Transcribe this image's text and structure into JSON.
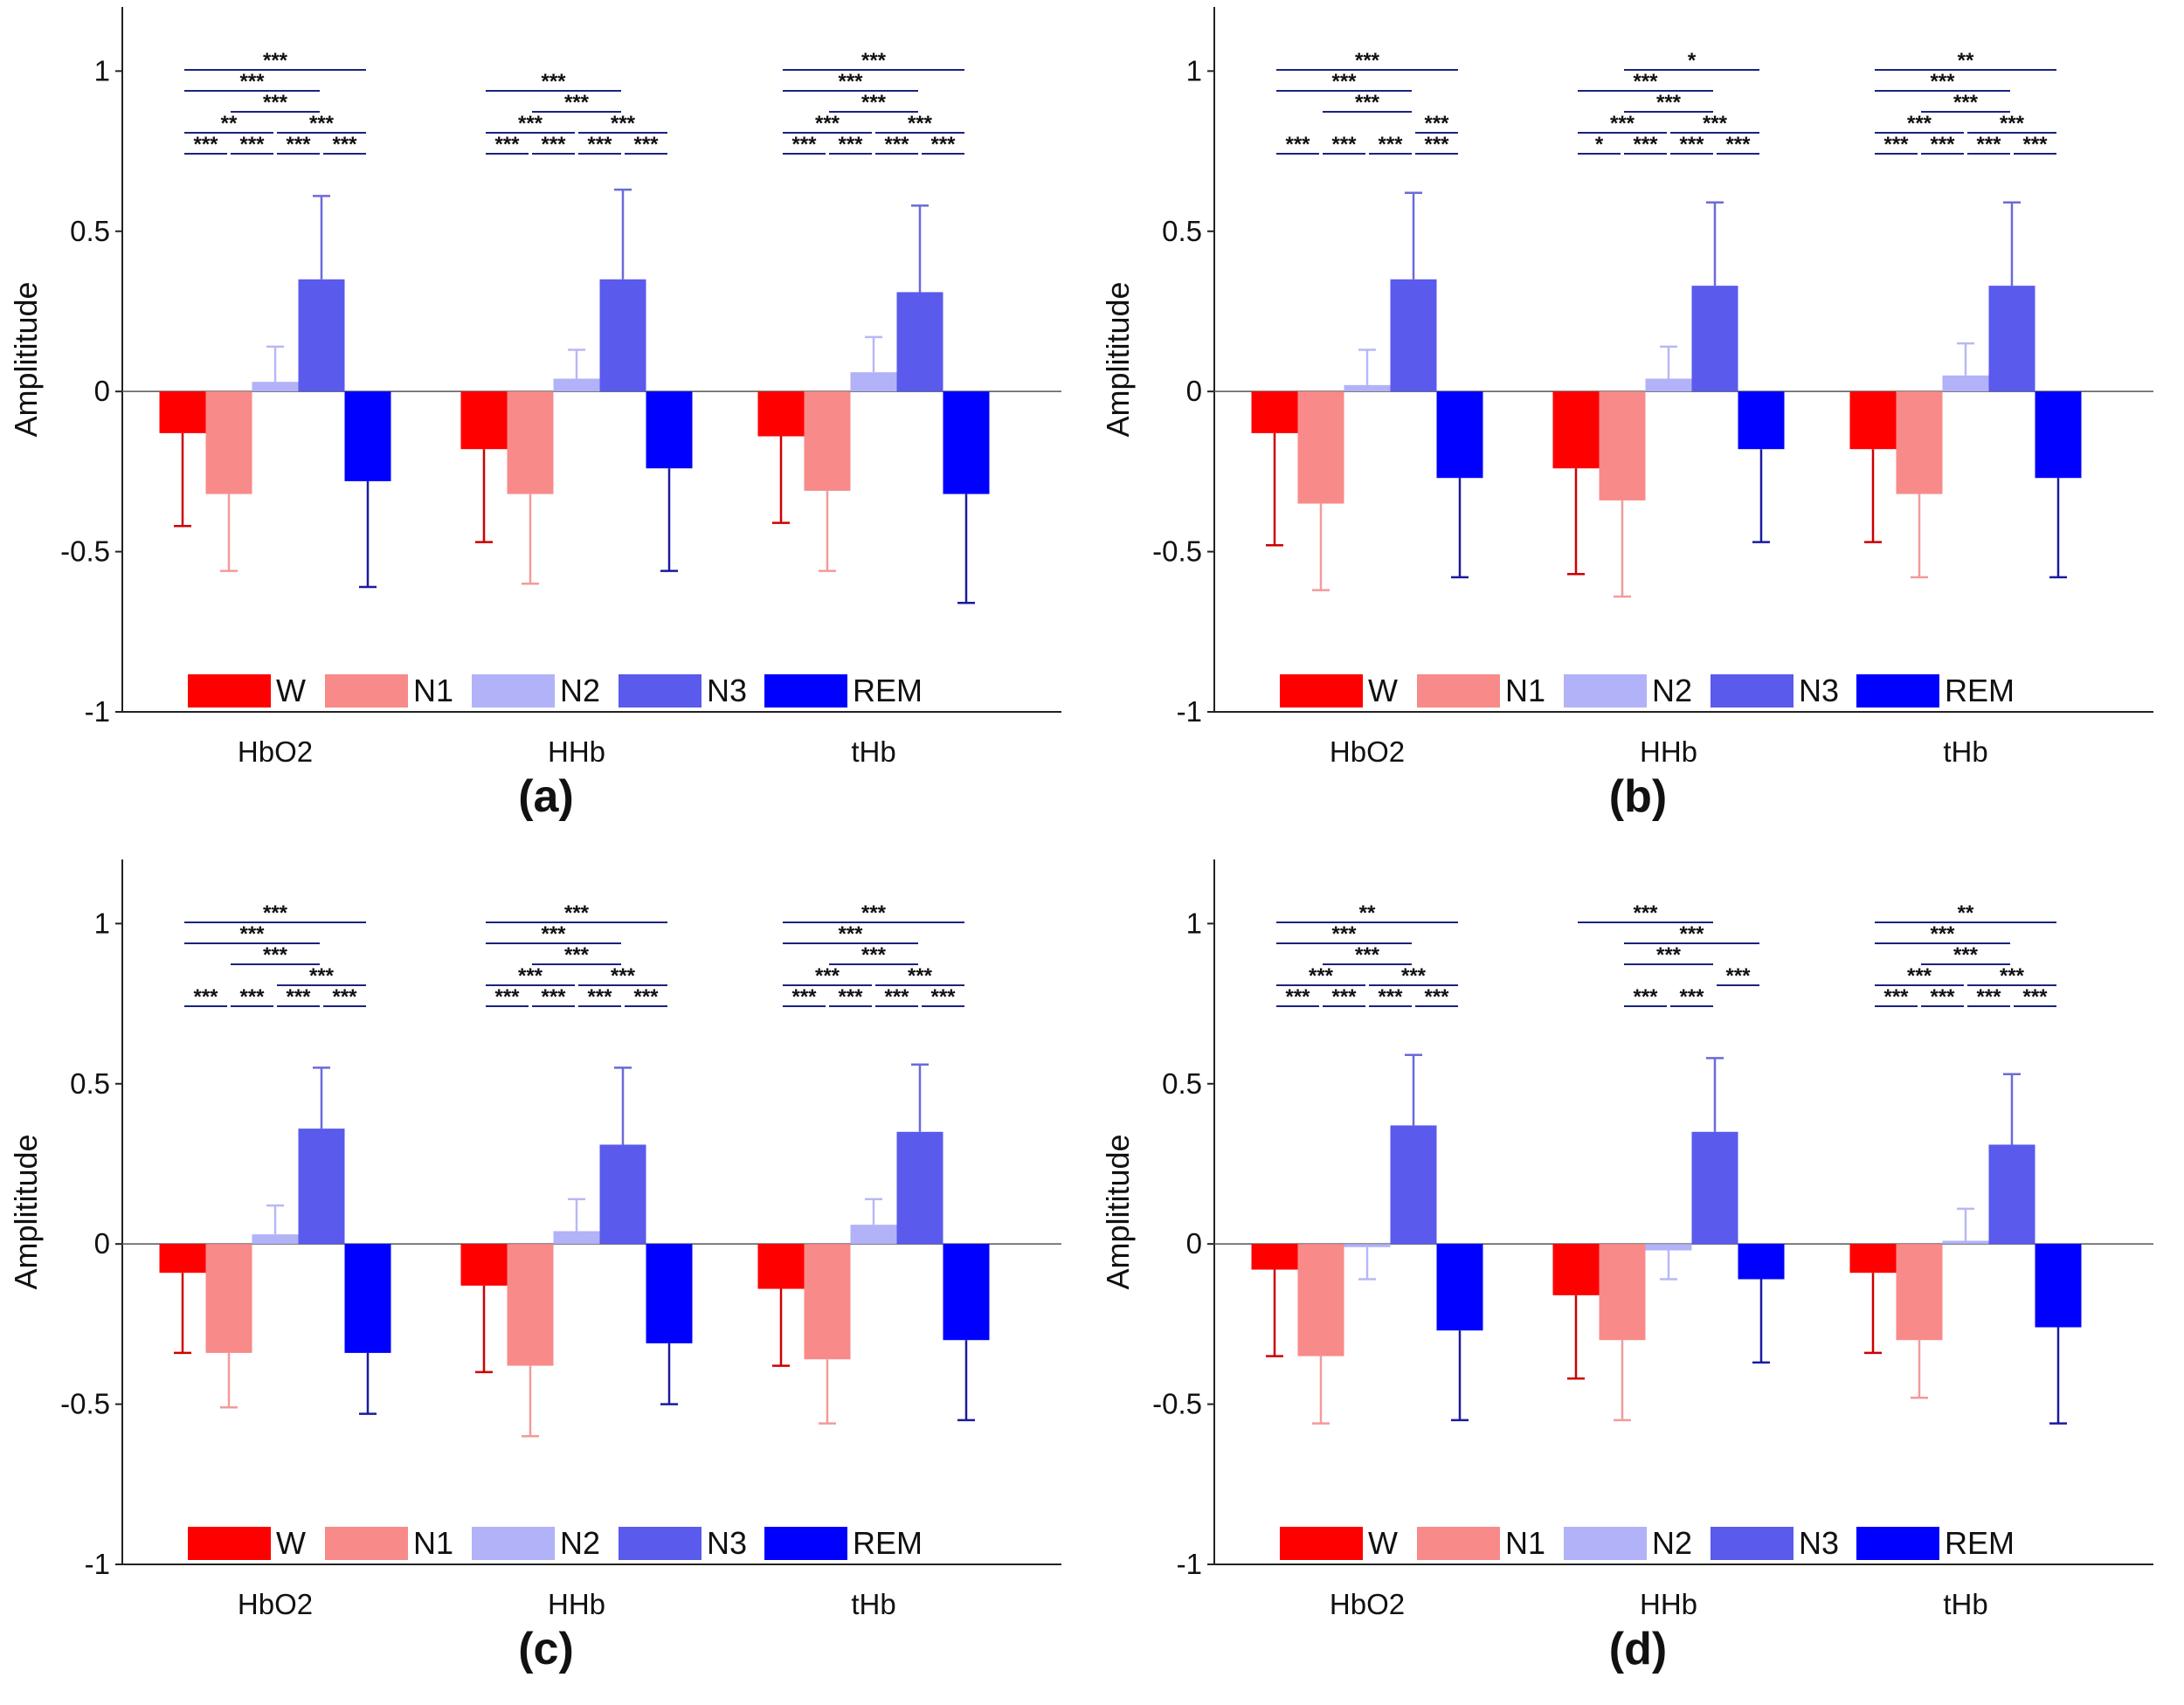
{
  "chart_data": [
    {
      "type": "bar",
      "panel_label": "(a)",
      "ylabel": "Amplititude",
      "ylim": [
        -1,
        1.2
      ],
      "yticks": [
        -1,
        -0.5,
        0,
        0.5,
        1
      ],
      "categories": [
        "HbO2",
        "HHb",
        "tHb"
      ],
      "legend_position": "bottom",
      "series": [
        {
          "name": "W",
          "color": "#ff0000",
          "errcolor": "#cc0000",
          "values": [
            -0.13,
            -0.18,
            -0.14
          ],
          "errors": [
            0.29,
            0.29,
            0.27
          ]
        },
        {
          "name": "N1",
          "color": "#f88a8a",
          "errcolor": "#f39a9a",
          "values": [
            -0.32,
            -0.32,
            -0.31
          ],
          "errors": [
            0.24,
            0.28,
            0.25
          ]
        },
        {
          "name": "N2",
          "color": "#b2b2f8",
          "errcolor": "#b8b8f4",
          "values": [
            0.03,
            0.04,
            0.06
          ],
          "errors": [
            0.11,
            0.09,
            0.11
          ]
        },
        {
          "name": "N3",
          "color": "#5a5aec",
          "errcolor": "#6a6ad8",
          "values": [
            0.35,
            0.35,
            0.31
          ],
          "errors": [
            0.26,
            0.28,
            0.27
          ]
        },
        {
          "name": "REM",
          "color": "#0000ff",
          "errcolor": "#1a1aa0",
          "values": [
            -0.28,
            -0.24,
            -0.32
          ],
          "errors": [
            0.33,
            0.32,
            0.34
          ]
        }
      ],
      "significance": [
        [
          {
            "s": 0,
            "e": 4,
            "label": "***",
            "row": 4
          },
          {
            "s": 0,
            "e": 3,
            "label": "***",
            "row": 3
          },
          {
            "s": 1,
            "e": 3,
            "label": "***",
            "row": 2
          },
          {
            "s": 0,
            "e": 2,
            "label": "**",
            "row": 1
          },
          {
            "s": 2,
            "e": 4,
            "label": "***",
            "row": 1
          },
          {
            "s": 0,
            "e": 1,
            "label": "***",
            "row": 0
          },
          {
            "s": 1,
            "e": 2,
            "label": "***",
            "row": 0
          },
          {
            "s": 2,
            "e": 3,
            "label": "***",
            "row": 0
          },
          {
            "s": 3,
            "e": 4,
            "label": "***",
            "row": 0
          }
        ],
        [
          {
            "s": 0,
            "e": 3,
            "label": "***",
            "row": 3
          },
          {
            "s": 1,
            "e": 3,
            "label": "***",
            "row": 2
          },
          {
            "s": 0,
            "e": 2,
            "label": "***",
            "row": 1
          },
          {
            "s": 2,
            "e": 4,
            "label": "***",
            "row": 1
          },
          {
            "s": 0,
            "e": 1,
            "label": "***",
            "row": 0
          },
          {
            "s": 1,
            "e": 2,
            "label": "***",
            "row": 0
          },
          {
            "s": 2,
            "e": 3,
            "label": "***",
            "row": 0
          },
          {
            "s": 3,
            "e": 4,
            "label": "***",
            "row": 0
          }
        ],
        [
          {
            "s": 0,
            "e": 4,
            "label": "***",
            "row": 4
          },
          {
            "s": 0,
            "e": 3,
            "label": "***",
            "row": 3
          },
          {
            "s": 1,
            "e": 3,
            "label": "***",
            "row": 2
          },
          {
            "s": 0,
            "e": 2,
            "label": "***",
            "row": 1
          },
          {
            "s": 2,
            "e": 4,
            "label": "***",
            "row": 1
          },
          {
            "s": 0,
            "e": 1,
            "label": "***",
            "row": 0
          },
          {
            "s": 1,
            "e": 2,
            "label": "***",
            "row": 0
          },
          {
            "s": 2,
            "e": 3,
            "label": "***",
            "row": 0
          },
          {
            "s": 3,
            "e": 4,
            "label": "***",
            "row": 0
          }
        ]
      ]
    },
    {
      "type": "bar",
      "panel_label": "(b)",
      "ylabel": "Amplititude",
      "ylim": [
        -1,
        1.2
      ],
      "yticks": [
        -1,
        -0.5,
        0,
        0.5,
        1
      ],
      "categories": [
        "HbO2",
        "HHb",
        "tHb"
      ],
      "legend_position": "bottom",
      "series": [
        {
          "name": "W",
          "color": "#ff0000",
          "errcolor": "#cc0000",
          "values": [
            -0.13,
            -0.24,
            -0.18
          ],
          "errors": [
            0.35,
            0.33,
            0.29
          ]
        },
        {
          "name": "N1",
          "color": "#f88a8a",
          "errcolor": "#f39a9a",
          "values": [
            -0.35,
            -0.34,
            -0.32
          ],
          "errors": [
            0.27,
            0.3,
            0.26
          ]
        },
        {
          "name": "N2",
          "color": "#b2b2f8",
          "errcolor": "#b8b8f4",
          "values": [
            0.02,
            0.04,
            0.05
          ],
          "errors": [
            0.11,
            0.1,
            0.1
          ]
        },
        {
          "name": "N3",
          "color": "#5a5aec",
          "errcolor": "#6a6ad8",
          "values": [
            0.35,
            0.33,
            0.33
          ],
          "errors": [
            0.27,
            0.26,
            0.26
          ]
        },
        {
          "name": "REM",
          "color": "#0000ff",
          "errcolor": "#1a1aa0",
          "values": [
            -0.27,
            -0.18,
            -0.27
          ],
          "errors": [
            0.31,
            0.29,
            0.31
          ]
        }
      ],
      "significance": [
        [
          {
            "s": 0,
            "e": 4,
            "label": "***",
            "row": 4
          },
          {
            "s": 0,
            "e": 3,
            "label": "***",
            "row": 3
          },
          {
            "s": 1,
            "e": 3,
            "label": "***",
            "row": 2
          },
          {
            "s": 3,
            "e": 4,
            "label": "***",
            "row": 1
          },
          {
            "s": 0,
            "e": 1,
            "label": "***",
            "row": 0
          },
          {
            "s": 1,
            "e": 2,
            "label": "***",
            "row": 0
          },
          {
            "s": 2,
            "e": 3,
            "label": "***",
            "row": 0
          },
          {
            "s": 3,
            "e": 4,
            "label": "***",
            "row": 0
          }
        ],
        [
          {
            "s": 1,
            "e": 4,
            "label": "*",
            "row": 4
          },
          {
            "s": 0,
            "e": 3,
            "label": "***",
            "row": 3
          },
          {
            "s": 1,
            "e": 3,
            "label": "***",
            "row": 2
          },
          {
            "s": 0,
            "e": 2,
            "label": "***",
            "row": 1
          },
          {
            "s": 2,
            "e": 4,
            "label": "***",
            "row": 1
          },
          {
            "s": 0,
            "e": 1,
            "label": "*",
            "row": 0
          },
          {
            "s": 1,
            "e": 2,
            "label": "***",
            "row": 0
          },
          {
            "s": 2,
            "e": 3,
            "label": "***",
            "row": 0
          },
          {
            "s": 3,
            "e": 4,
            "label": "***",
            "row": 0
          }
        ],
        [
          {
            "s": 0,
            "e": 4,
            "label": "**",
            "row": 4
          },
          {
            "s": 0,
            "e": 3,
            "label": "***",
            "row": 3
          },
          {
            "s": 1,
            "e": 3,
            "label": "***",
            "row": 2
          },
          {
            "s": 0,
            "e": 2,
            "label": "***",
            "row": 1
          },
          {
            "s": 2,
            "e": 4,
            "label": "***",
            "row": 1
          },
          {
            "s": 0,
            "e": 1,
            "label": "***",
            "row": 0
          },
          {
            "s": 1,
            "e": 2,
            "label": "***",
            "row": 0
          },
          {
            "s": 2,
            "e": 3,
            "label": "***",
            "row": 0
          },
          {
            "s": 3,
            "e": 4,
            "label": "***",
            "row": 0
          }
        ]
      ]
    },
    {
      "type": "bar",
      "panel_label": "(c)",
      "ylabel": "Amplititude",
      "ylim": [
        -1,
        1.2
      ],
      "yticks": [
        -1,
        -0.5,
        0,
        0.5,
        1
      ],
      "categories": [
        "HbO2",
        "HHb",
        "tHb"
      ],
      "legend_position": "bottom",
      "series": [
        {
          "name": "W",
          "color": "#ff0000",
          "errcolor": "#cc0000",
          "values": [
            -0.09,
            -0.13,
            -0.14
          ],
          "errors": [
            0.25,
            0.27,
            0.24
          ]
        },
        {
          "name": "N1",
          "color": "#f88a8a",
          "errcolor": "#f39a9a",
          "values": [
            -0.34,
            -0.38,
            -0.36
          ],
          "errors": [
            0.17,
            0.22,
            0.2
          ]
        },
        {
          "name": "N2",
          "color": "#b2b2f8",
          "errcolor": "#b8b8f4",
          "values": [
            0.03,
            0.04,
            0.06
          ],
          "errors": [
            0.09,
            0.1,
            0.08
          ]
        },
        {
          "name": "N3",
          "color": "#5a5aec",
          "errcolor": "#6a6ad8",
          "values": [
            0.36,
            0.31,
            0.35
          ],
          "errors": [
            0.19,
            0.24,
            0.21
          ]
        },
        {
          "name": "REM",
          "color": "#0000ff",
          "errcolor": "#1a1aa0",
          "values": [
            -0.34,
            -0.31,
            -0.3
          ],
          "errors": [
            0.19,
            0.19,
            0.25
          ]
        }
      ],
      "significance": [
        [
          {
            "s": 0,
            "e": 4,
            "label": "***",
            "row": 4
          },
          {
            "s": 0,
            "e": 3,
            "label": "***",
            "row": 3
          },
          {
            "s": 1,
            "e": 3,
            "label": "***",
            "row": 2
          },
          {
            "s": 2,
            "e": 4,
            "label": "***",
            "row": 1
          },
          {
            "s": 0,
            "e": 1,
            "label": "***",
            "row": 0
          },
          {
            "s": 1,
            "e": 2,
            "label": "***",
            "row": 0
          },
          {
            "s": 2,
            "e": 3,
            "label": "***",
            "row": 0
          },
          {
            "s": 3,
            "e": 4,
            "label": "***",
            "row": 0
          }
        ],
        [
          {
            "s": 0,
            "e": 4,
            "label": "***",
            "row": 4
          },
          {
            "s": 0,
            "e": 3,
            "label": "***",
            "row": 3
          },
          {
            "s": 1,
            "e": 3,
            "label": "***",
            "row": 2
          },
          {
            "s": 0,
            "e": 2,
            "label": "***",
            "row": 1
          },
          {
            "s": 2,
            "e": 4,
            "label": "***",
            "row": 1
          },
          {
            "s": 0,
            "e": 1,
            "label": "***",
            "row": 0
          },
          {
            "s": 1,
            "e": 2,
            "label": "***",
            "row": 0
          },
          {
            "s": 2,
            "e": 3,
            "label": "***",
            "row": 0
          },
          {
            "s": 3,
            "e": 4,
            "label": "***",
            "row": 0
          }
        ],
        [
          {
            "s": 0,
            "e": 4,
            "label": "***",
            "row": 4
          },
          {
            "s": 0,
            "e": 3,
            "label": "***",
            "row": 3
          },
          {
            "s": 1,
            "e": 3,
            "label": "***",
            "row": 2
          },
          {
            "s": 0,
            "e": 2,
            "label": "***",
            "row": 1
          },
          {
            "s": 2,
            "e": 4,
            "label": "***",
            "row": 1
          },
          {
            "s": 0,
            "e": 1,
            "label": "***",
            "row": 0
          },
          {
            "s": 1,
            "e": 2,
            "label": "***",
            "row": 0
          },
          {
            "s": 2,
            "e": 3,
            "label": "***",
            "row": 0
          },
          {
            "s": 3,
            "e": 4,
            "label": "***",
            "row": 0
          }
        ]
      ]
    },
    {
      "type": "bar",
      "panel_label": "(d)",
      "ylabel": "Amplititude",
      "ylim": [
        -1,
        1.2
      ],
      "yticks": [
        -1,
        -0.5,
        0,
        0.5,
        1
      ],
      "categories": [
        "HbO2",
        "HHb",
        "tHb"
      ],
      "legend_position": "bottom",
      "series": [
        {
          "name": "W",
          "color": "#ff0000",
          "errcolor": "#cc0000",
          "values": [
            -0.08,
            -0.16,
            -0.09
          ],
          "errors": [
            0.27,
            0.26,
            0.25
          ]
        },
        {
          "name": "N1",
          "color": "#f88a8a",
          "errcolor": "#f39a9a",
          "values": [
            -0.35,
            -0.3,
            -0.3
          ],
          "errors": [
            0.21,
            0.25,
            0.18
          ]
        },
        {
          "name": "N2",
          "color": "#b2b2f8",
          "errcolor": "#b8b8f4",
          "values": [
            -0.01,
            -0.02,
            0.01
          ],
          "errors": [
            0.1,
            0.09,
            0.1
          ]
        },
        {
          "name": "N3",
          "color": "#5a5aec",
          "errcolor": "#6a6ad8",
          "values": [
            0.37,
            0.35,
            0.31
          ],
          "errors": [
            0.22,
            0.23,
            0.22
          ]
        },
        {
          "name": "REM",
          "color": "#0000ff",
          "errcolor": "#1a1aa0",
          "values": [
            -0.27,
            -0.11,
            -0.26
          ],
          "errors": [
            0.28,
            0.26,
            0.3
          ]
        }
      ],
      "significance": [
        [
          {
            "s": 0,
            "e": 4,
            "label": "**",
            "row": 4
          },
          {
            "s": 0,
            "e": 3,
            "label": "***",
            "row": 3
          },
          {
            "s": 1,
            "e": 3,
            "label": "***",
            "row": 2
          },
          {
            "s": 0,
            "e": 2,
            "label": "***",
            "row": 1
          },
          {
            "s": 2,
            "e": 4,
            "label": "***",
            "row": 1
          },
          {
            "s": 0,
            "e": 1,
            "label": "***",
            "row": 0
          },
          {
            "s": 1,
            "e": 2,
            "label": "***",
            "row": 0
          },
          {
            "s": 2,
            "e": 3,
            "label": "***",
            "row": 0
          },
          {
            "s": 3,
            "e": 4,
            "label": "***",
            "row": 0
          }
        ],
        [
          {
            "s": 0,
            "e": 3,
            "label": "***",
            "row": 4
          },
          {
            "s": 1,
            "e": 4,
            "label": "***",
            "row": 3
          },
          {
            "s": 1,
            "e": 3,
            "label": "***",
            "row": 2
          },
          {
            "s": 3,
            "e": 4,
            "label": "***",
            "row": 1
          },
          {
            "s": 1,
            "e": 2,
            "label": "***",
            "row": 0
          },
          {
            "s": 2,
            "e": 3,
            "label": "***",
            "row": 0
          }
        ],
        [
          {
            "s": 0,
            "e": 4,
            "label": "**",
            "row": 4
          },
          {
            "s": 0,
            "e": 3,
            "label": "***",
            "row": 3
          },
          {
            "s": 1,
            "e": 3,
            "label": "***",
            "row": 2
          },
          {
            "s": 0,
            "e": 2,
            "label": "***",
            "row": 1
          },
          {
            "s": 2,
            "e": 4,
            "label": "***",
            "row": 1
          },
          {
            "s": 0,
            "e": 1,
            "label": "***",
            "row": 0
          },
          {
            "s": 1,
            "e": 2,
            "label": "***",
            "row": 0
          },
          {
            "s": 2,
            "e": 3,
            "label": "***",
            "row": 0
          },
          {
            "s": 3,
            "e": 4,
            "label": "***",
            "row": 0
          }
        ]
      ]
    }
  ]
}
